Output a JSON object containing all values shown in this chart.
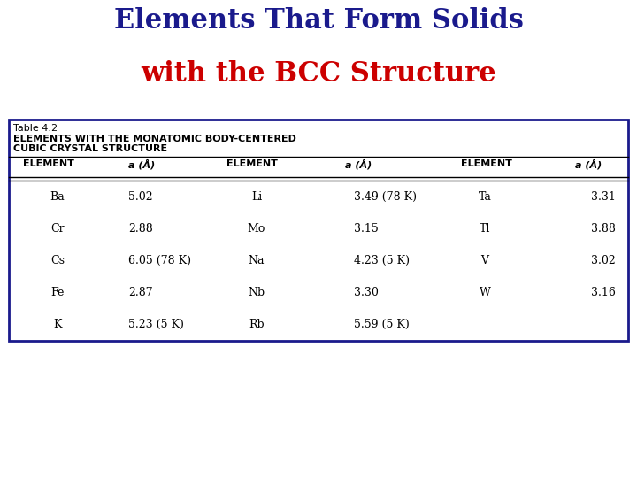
{
  "title_line1": "Elements That Form Solids",
  "title_line2": "with the BCC Structure",
  "title_line1_color": "#1a1a8c",
  "title_line2_color": "#cc0000",
  "table_label": "Table 4.2",
  "table_subtitle1": "ELEMENTS WITH THE MONATOMIC BODY-CENTERED",
  "table_subtitle2": "CUBIC CRYSTAL STRUCTURE",
  "col1_elements": [
    "Ba",
    "Cr",
    "Cs",
    "Fe",
    "K"
  ],
  "col1_values": [
    "5.02",
    "2.88",
    "6.05 (78 K)",
    "2.87",
    "5.23 (5 K)"
  ],
  "col2_elements": [
    "Li",
    "Mo",
    "Na",
    "Nb",
    "Rb"
  ],
  "col2_values": [
    "3.49 (78 K)",
    "3.15",
    "4.23 (5 K)",
    "3.30",
    "5.59 (5 K)"
  ],
  "col3_elements": [
    "Ta",
    "Tl",
    "V",
    "W"
  ],
  "col3_values": [
    "3.31",
    "3.88",
    "3.02",
    "3.16"
  ],
  "bg_color": "#ffffff",
  "border_color": "#1a1a8c",
  "table_text_color": "#000000",
  "title_fontsize": 22,
  "header_fontsize": 8,
  "data_fontsize": 9,
  "subtitle_fontsize": 8
}
